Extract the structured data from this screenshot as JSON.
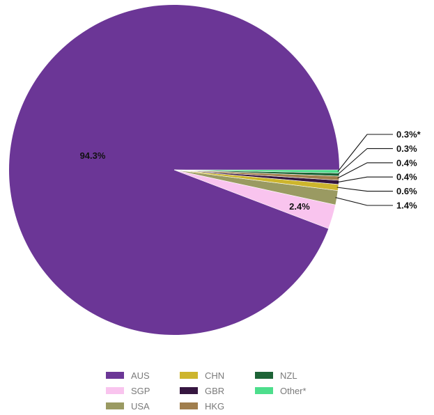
{
  "chart_data": {
    "type": "pie",
    "title": "",
    "start_angle_deg": 0,
    "direction": "counterclockwise",
    "slices": [
      {
        "label": "AUS",
        "value": 94.3,
        "value_label": "94.3%",
        "color": "#6b3696"
      },
      {
        "label": "SGP",
        "value": 2.4,
        "value_label": "2.4%",
        "color": "#f9c4ee"
      },
      {
        "label": "USA",
        "value": 1.4,
        "value_label": "1.4%",
        "color": "#9a9a62"
      },
      {
        "label": "CHN",
        "value": 0.6,
        "value_label": "0.6%",
        "color": "#cdb52d"
      },
      {
        "label": "GBR",
        "value": 0.4,
        "value_label": "0.4%",
        "color": "#361640"
      },
      {
        "label": "HKG",
        "value": 0.4,
        "value_label": "0.4%",
        "color": "#a07e4d"
      },
      {
        "label": "NZL",
        "value": 0.3,
        "value_label": "0.3%",
        "color": "#1d6336"
      },
      {
        "label": "Other*",
        "value": 0.3,
        "value_label": "0.3%*",
        "color": "#4dde8c"
      }
    ],
    "legend": {
      "position": "bottom",
      "columns": [
        [
          "AUS",
          "SGP",
          "USA"
        ],
        [
          "CHN",
          "GBR",
          "HKG"
        ],
        [
          "NZL",
          "Other*"
        ]
      ]
    }
  }
}
